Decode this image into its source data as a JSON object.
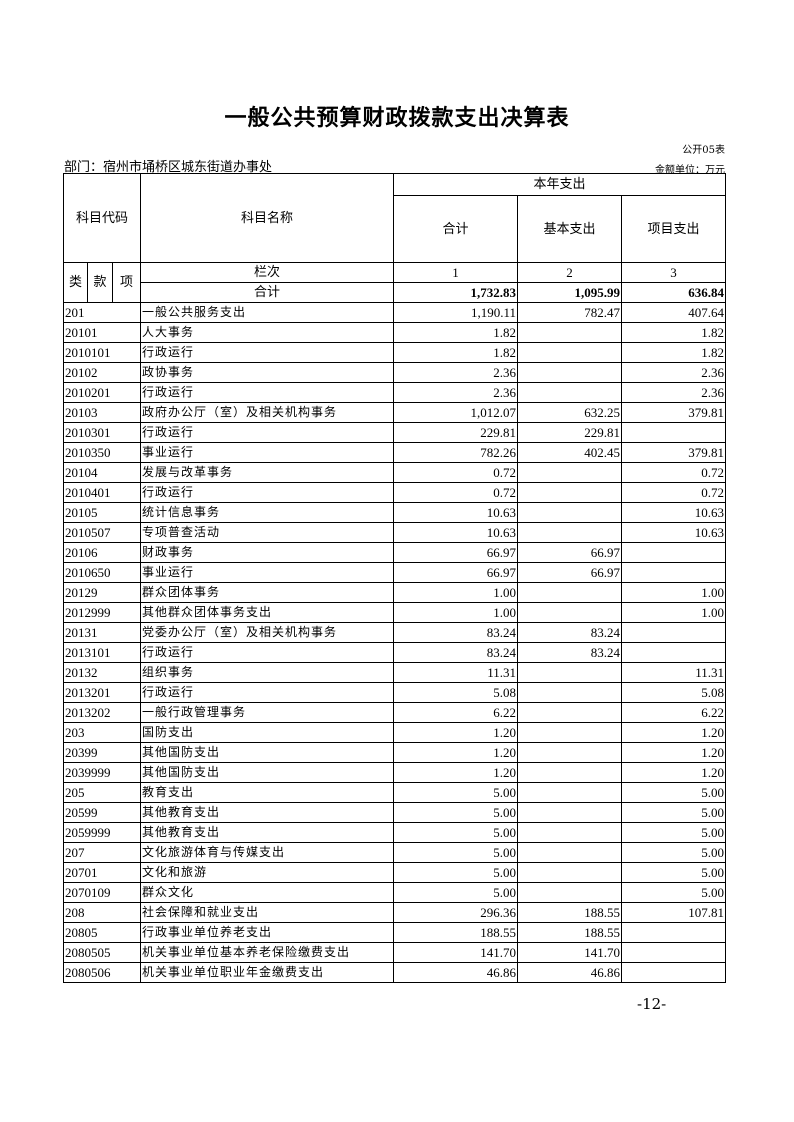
{
  "title": "一般公共预算财政拨款支出决算表",
  "table_no": "公开05表",
  "department": "部门：宿州市埇桥区城东街道办事处",
  "unit": "金额单位：万元",
  "headers": {
    "code": "科目代码",
    "name": "科目名称",
    "current_year": "本年支出",
    "total": "合计",
    "basic": "基本支出",
    "project": "项目支出",
    "lei": "类",
    "kuan": "款",
    "xiang": "项",
    "column_index": "栏次",
    "col1": "1",
    "col2": "2",
    "col3": "3",
    "sum_label": "合计"
  },
  "totals": {
    "total": "1,732.83",
    "basic": "1,095.99",
    "project": "636.84"
  },
  "rows": [
    [
      "201",
      "一般公共服务支出",
      "1,190.11",
      "782.47",
      "407.64"
    ],
    [
      "20101",
      "人大事务",
      "1.82",
      "",
      "1.82"
    ],
    [
      "2010101",
      "行政运行",
      "1.82",
      "",
      "1.82"
    ],
    [
      "20102",
      "政协事务",
      "2.36",
      "",
      "2.36"
    ],
    [
      "2010201",
      "行政运行",
      "2.36",
      "",
      "2.36"
    ],
    [
      "20103",
      "政府办公厅（室）及相关机构事务",
      "1,012.07",
      "632.25",
      "379.81"
    ],
    [
      "2010301",
      "行政运行",
      "229.81",
      "229.81",
      ""
    ],
    [
      "2010350",
      "事业运行",
      "782.26",
      "402.45",
      "379.81"
    ],
    [
      "20104",
      "发展与改革事务",
      "0.72",
      "",
      "0.72"
    ],
    [
      "2010401",
      "行政运行",
      "0.72",
      "",
      "0.72"
    ],
    [
      "20105",
      "统计信息事务",
      "10.63",
      "",
      "10.63"
    ],
    [
      "2010507",
      "专项普查活动",
      "10.63",
      "",
      "10.63"
    ],
    [
      "20106",
      "财政事务",
      "66.97",
      "66.97",
      ""
    ],
    [
      "2010650",
      "事业运行",
      "66.97",
      "66.97",
      ""
    ],
    [
      "20129",
      "群众团体事务",
      "1.00",
      "",
      "1.00"
    ],
    [
      "2012999",
      "其他群众团体事务支出",
      "1.00",
      "",
      "1.00"
    ],
    [
      "20131",
      "党委办公厅（室）及相关机构事务",
      "83.24",
      "83.24",
      ""
    ],
    [
      "2013101",
      "行政运行",
      "83.24",
      "83.24",
      ""
    ],
    [
      "20132",
      "组织事务",
      "11.31",
      "",
      "11.31"
    ],
    [
      "2013201",
      "行政运行",
      "5.08",
      "",
      "5.08"
    ],
    [
      "2013202",
      "一般行政管理事务",
      "6.22",
      "",
      "6.22"
    ],
    [
      "203",
      "国防支出",
      "1.20",
      "",
      "1.20"
    ],
    [
      "20399",
      "其他国防支出",
      "1.20",
      "",
      "1.20"
    ],
    [
      "2039999",
      "其他国防支出",
      "1.20",
      "",
      "1.20"
    ],
    [
      "205",
      "教育支出",
      "5.00",
      "",
      "5.00"
    ],
    [
      "20599",
      "其他教育支出",
      "5.00",
      "",
      "5.00"
    ],
    [
      "2059999",
      "其他教育支出",
      "5.00",
      "",
      "5.00"
    ],
    [
      "207",
      "文化旅游体育与传媒支出",
      "5.00",
      "",
      "5.00"
    ],
    [
      "20701",
      "文化和旅游",
      "5.00",
      "",
      "5.00"
    ],
    [
      "2070109",
      "群众文化",
      "5.00",
      "",
      "5.00"
    ],
    [
      "208",
      "社会保障和就业支出",
      "296.36",
      "188.55",
      "107.81"
    ],
    [
      "20805",
      "行政事业单位养老支出",
      "188.55",
      "188.55",
      ""
    ],
    [
      "2080505",
      "机关事业单位基本养老保险缴费支出",
      "141.70",
      "141.70",
      ""
    ],
    [
      "2080506",
      "机关事业单位职业年金缴费支出",
      "46.86",
      "46.86",
      ""
    ]
  ],
  "page_number": "-12-"
}
